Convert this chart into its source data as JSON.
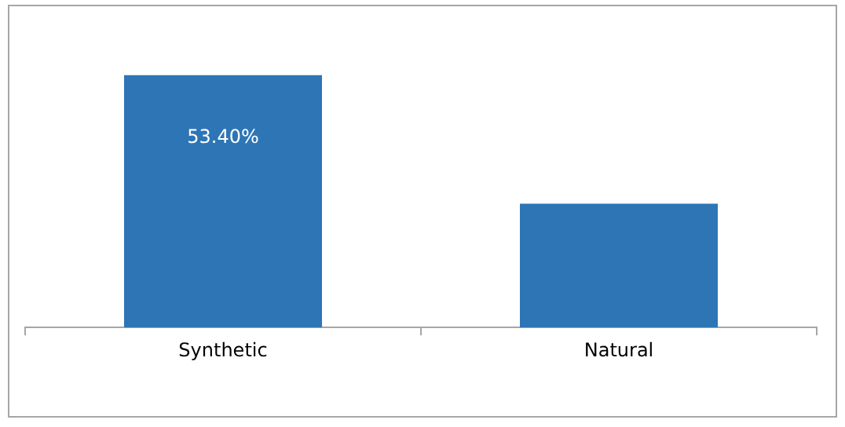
{
  "chart_data": {
    "type": "bar",
    "categories": [
      "Synthetic",
      "Natural"
    ],
    "values": [
      53.4,
      26.2
    ],
    "value_labels": [
      "53.40%",
      null
    ],
    "color": "#2e75b6",
    "legend": false,
    "grid": false,
    "tick_labels": "x"
  }
}
